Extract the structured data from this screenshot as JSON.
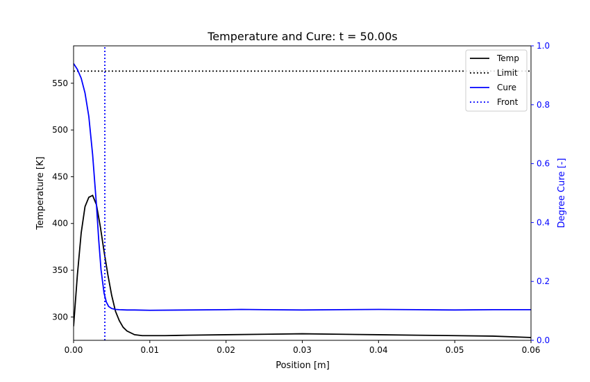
{
  "chart_data": {
    "type": "line",
    "title": "Temperature and Cure: t = 50.00s",
    "xlabel": "Position [m]",
    "ylabel": "Temperature [K]",
    "y2label": "Degree Cure [-]",
    "xlim": [
      0,
      0.06
    ],
    "ylim": [
      275,
      590
    ],
    "y2lim": [
      0,
      1.0
    ],
    "xticks": [
      0,
      0.01,
      0.02,
      0.03,
      0.04,
      0.05,
      0.06
    ],
    "xtick_labels": [
      "0.00",
      "0.01",
      "0.02",
      "0.03",
      "0.04",
      "0.05",
      "0.06"
    ],
    "yticks": [
      300,
      350,
      400,
      450,
      500,
      550
    ],
    "ytick_labels": [
      "300",
      "350",
      "400",
      "450",
      "500",
      "550"
    ],
    "y2ticks": [
      0,
      0.2,
      0.4,
      0.6,
      0.8,
      1.0
    ],
    "y2tick_labels": [
      "0.0",
      "0.2",
      "0.4",
      "0.6",
      "0.8",
      "1.0"
    ],
    "grid": false,
    "legend_position": "top-right",
    "colors": {
      "temp": "#000000",
      "limit": "#000000",
      "cure": "#0000ff",
      "front": "#0000ff",
      "axis2": "#0000ff"
    },
    "series": [
      {
        "name": "Temp",
        "axis": "left",
        "style": "solid",
        "x": [
          0.0,
          0.0005,
          0.001,
          0.0015,
          0.002,
          0.0025,
          0.003,
          0.0035,
          0.004,
          0.0045,
          0.005,
          0.0055,
          0.006,
          0.0065,
          0.007,
          0.008,
          0.009,
          0.01,
          0.012,
          0.015,
          0.02,
          0.025,
          0.03,
          0.035,
          0.04,
          0.045,
          0.05,
          0.055,
          0.06
        ],
        "y": [
          290,
          345,
          390,
          418,
          428,
          430,
          420,
          397,
          370,
          345,
          323,
          306,
          296,
          289,
          285,
          281,
          280,
          280,
          280,
          280.5,
          281,
          281.5,
          282,
          281.5,
          281,
          280.5,
          280,
          279.5,
          278
        ]
      },
      {
        "name": "Limit",
        "axis": "left",
        "style": "dotted",
        "x": [
          0.0,
          0.06
        ],
        "y": [
          563,
          563
        ]
      },
      {
        "name": "Cure",
        "axis": "right",
        "style": "solid",
        "x": [
          0.0,
          0.0005,
          0.001,
          0.0015,
          0.002,
          0.0025,
          0.003,
          0.0033,
          0.0036,
          0.004,
          0.0043,
          0.0046,
          0.005,
          0.0055,
          0.006,
          0.007,
          0.008,
          0.01,
          0.015,
          0.02,
          0.022,
          0.025,
          0.03,
          0.035,
          0.04,
          0.045,
          0.05,
          0.055,
          0.06
        ],
        "y": [
          0.94,
          0.92,
          0.89,
          0.84,
          0.76,
          0.63,
          0.46,
          0.34,
          0.24,
          0.16,
          0.13,
          0.115,
          0.108,
          0.105,
          0.104,
          0.103,
          0.103,
          0.102,
          0.103,
          0.104,
          0.105,
          0.104,
          0.103,
          0.104,
          0.105,
          0.104,
          0.103,
          0.104,
          0.104
        ]
      },
      {
        "name": "Front",
        "axis": "left",
        "style": "dotted",
        "x": [
          0.0041,
          0.0041
        ],
        "y": [
          275,
          590
        ]
      }
    ]
  }
}
